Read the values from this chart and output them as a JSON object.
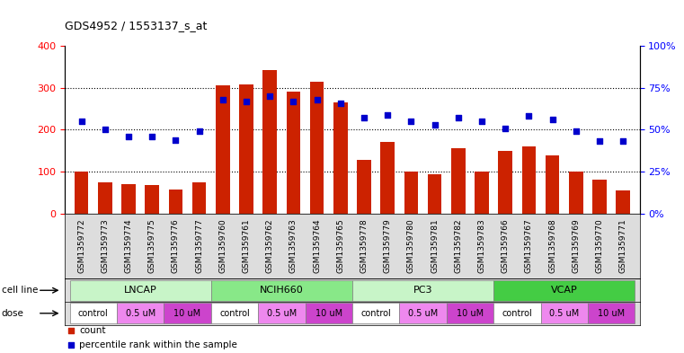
{
  "title": "GDS4952 / 1553137_s_at",
  "samples": [
    "GSM1359772",
    "GSM1359773",
    "GSM1359774",
    "GSM1359775",
    "GSM1359776",
    "GSM1359777",
    "GSM1359760",
    "GSM1359761",
    "GSM1359762",
    "GSM1359763",
    "GSM1359764",
    "GSM1359765",
    "GSM1359778",
    "GSM1359779",
    "GSM1359780",
    "GSM1359781",
    "GSM1359782",
    "GSM1359783",
    "GSM1359766",
    "GSM1359767",
    "GSM1359768",
    "GSM1359769",
    "GSM1359770",
    "GSM1359771"
  ],
  "counts": [
    100,
    75,
    70,
    68,
    58,
    75,
    305,
    308,
    343,
    290,
    315,
    265,
    128,
    170,
    100,
    93,
    155,
    100,
    150,
    160,
    138,
    100,
    80,
    55
  ],
  "percentiles": [
    55,
    50,
    46,
    46,
    44,
    49,
    68,
    67,
    70,
    67,
    68,
    66,
    57,
    59,
    55,
    53,
    57,
    55,
    51,
    58,
    56,
    49,
    43,
    43
  ],
  "bar_color": "#cc2200",
  "dot_color": "#0000cc",
  "ylim_left": [
    0,
    400
  ],
  "ylim_right": [
    0,
    100
  ],
  "yticks_left": [
    0,
    100,
    200,
    300,
    400
  ],
  "yticks_right": [
    0,
    25,
    50,
    75,
    100
  ],
  "ytick_labels_right": [
    "0%",
    "25%",
    "50%",
    "75%",
    "100%"
  ],
  "cell_lines": [
    {
      "name": "LNCAP",
      "start": 0,
      "end": 6,
      "color": "#c8f5c8"
    },
    {
      "name": "NCIH660",
      "start": 6,
      "end": 12,
      "color": "#88e888"
    },
    {
      "name": "PC3",
      "start": 12,
      "end": 18,
      "color": "#c8f5c8"
    },
    {
      "name": "VCAP",
      "start": 18,
      "end": 24,
      "color": "#44cc44"
    }
  ],
  "doses": [
    {
      "name": "control",
      "indices": [
        0,
        1
      ],
      "color": "#ffffff"
    },
    {
      "name": "0.5 uM",
      "indices": [
        2,
        3
      ],
      "color": "#ee88ee"
    },
    {
      "name": "10 uM",
      "indices": [
        4,
        5
      ],
      "color": "#cc44cc"
    },
    {
      "name": "control",
      "indices": [
        6,
        7
      ],
      "color": "#ffffff"
    },
    {
      "name": "0.5 uM",
      "indices": [
        8,
        9
      ],
      "color": "#ee88ee"
    },
    {
      "name": "10 uM",
      "indices": [
        10,
        11
      ],
      "color": "#cc44cc"
    },
    {
      "name": "control",
      "indices": [
        12,
        13
      ],
      "color": "#ffffff"
    },
    {
      "name": "0.5 uM",
      "indices": [
        14,
        15
      ],
      "color": "#ee88ee"
    },
    {
      "name": "10 uM",
      "indices": [
        16,
        17
      ],
      "color": "#cc44cc"
    },
    {
      "name": "control",
      "indices": [
        18,
        19
      ],
      "color": "#ffffff"
    },
    {
      "name": "0.5 uM",
      "indices": [
        20,
        21
      ],
      "color": "#ee88ee"
    },
    {
      "name": "10 uM",
      "indices": [
        22,
        23
      ],
      "color": "#cc44cc"
    }
  ],
  "legend_count_color": "#cc2200",
  "legend_dot_color": "#0000cc"
}
